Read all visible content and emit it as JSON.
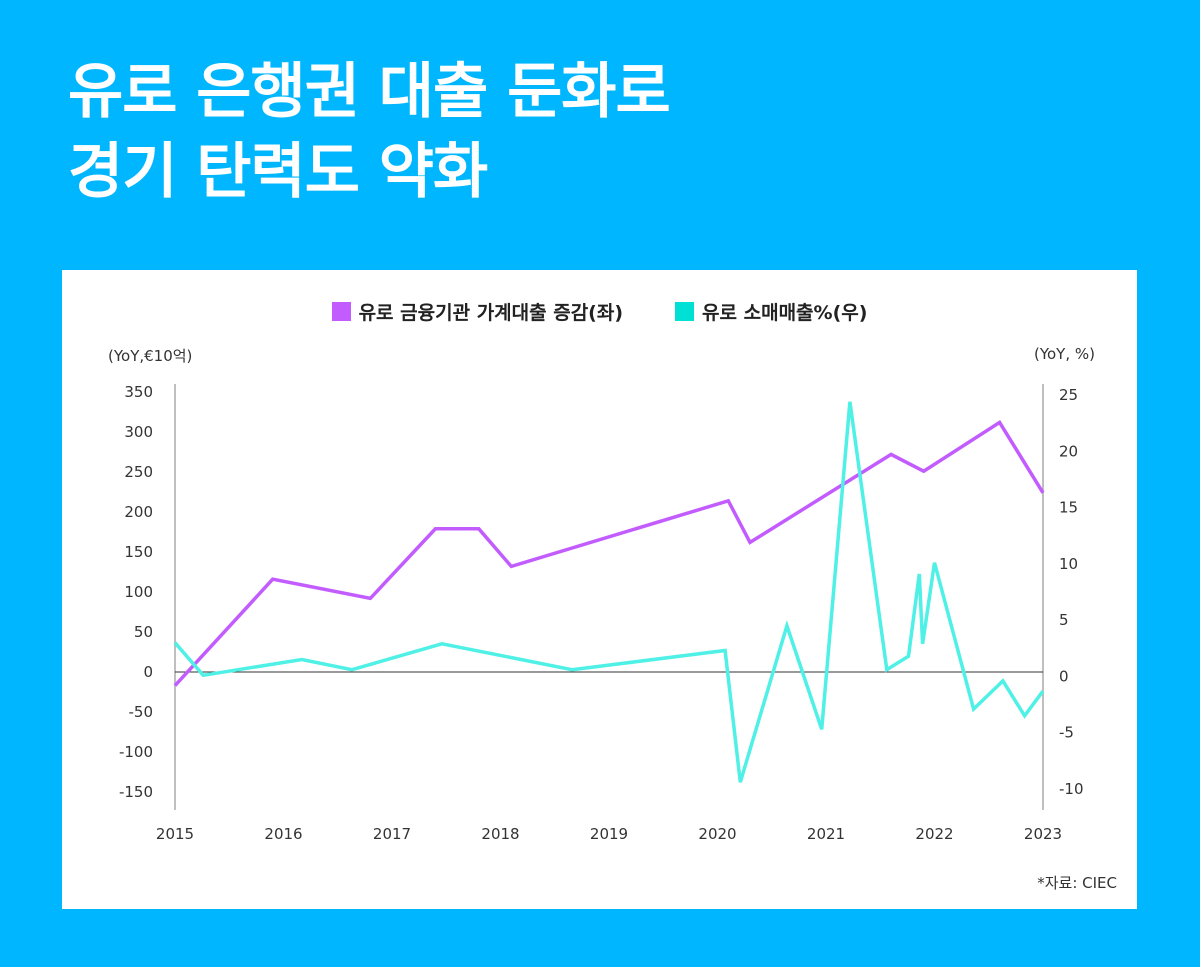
{
  "header": {
    "title_line1": "유로 은행권 대출 둔화로",
    "title_line2": "경기 탄력도 약화"
  },
  "colors": {
    "background": "#00b7ff",
    "card": "#ffffff",
    "loans": "#c35cff",
    "retail": "#4ff0e6",
    "legend_retail_swatch": "#00e0d4"
  },
  "source": "*자료: CIEC",
  "chart_data": {
    "type": "line",
    "title": "",
    "xlabel": "",
    "x_ticks": [
      "2015",
      "2016",
      "2017",
      "2018",
      "2019",
      "2020",
      "2021",
      "2022",
      "2023"
    ],
    "xlim": [
      2015,
      2023
    ],
    "left_axis": {
      "label": "(YoY,€10억)",
      "ylim": [
        -150,
        350
      ],
      "ticks": [
        350,
        300,
        250,
        200,
        150,
        100,
        50,
        0,
        -50,
        -100,
        -150
      ]
    },
    "right_axis": {
      "label": "(YoY, %)",
      "ylim": [
        -10,
        25
      ],
      "ticks": [
        25,
        20,
        15,
        10,
        5,
        0,
        -5,
        -10
      ]
    },
    "legend_position": "top-center",
    "grid": false,
    "zero_line": true,
    "series": [
      {
        "name": "유로 금융기관 가계대출 증감(좌)",
        "axis": "left",
        "color": "#c35cff",
        "x": [
          2015.0,
          2015.9,
          2016.8,
          2017.4,
          2017.8,
          2018.1,
          2020.1,
          2020.3,
          2021.6,
          2021.9,
          2022.6,
          2023.0
        ],
        "y": [
          -17,
          116,
          92,
          179,
          179,
          132,
          214,
          162,
          272,
          251,
          312,
          224
        ]
      },
      {
        "name": "유로 소매매출%(우)",
        "axis": "right",
        "color": "#4ff0e6",
        "x": [
          2015.0,
          2015.26,
          2016.17,
          2016.63,
          2017.46,
          2018.66,
          2020.07,
          2020.21,
          2020.64,
          2020.96,
          2021.22,
          2021.56,
          2021.76,
          2021.86,
          2021.89,
          2022.0,
          2022.36,
          2022.63,
          2022.83,
          2023.0
        ],
        "y": [
          3.0,
          0.1,
          1.5,
          0.6,
          2.9,
          0.6,
          2.3,
          -9.4,
          4.5,
          -4.7,
          24.4,
          0.6,
          1.8,
          9.1,
          2.9,
          10.1,
          -2.9,
          -0.4,
          -3.5,
          -1.3
        ]
      }
    ]
  }
}
